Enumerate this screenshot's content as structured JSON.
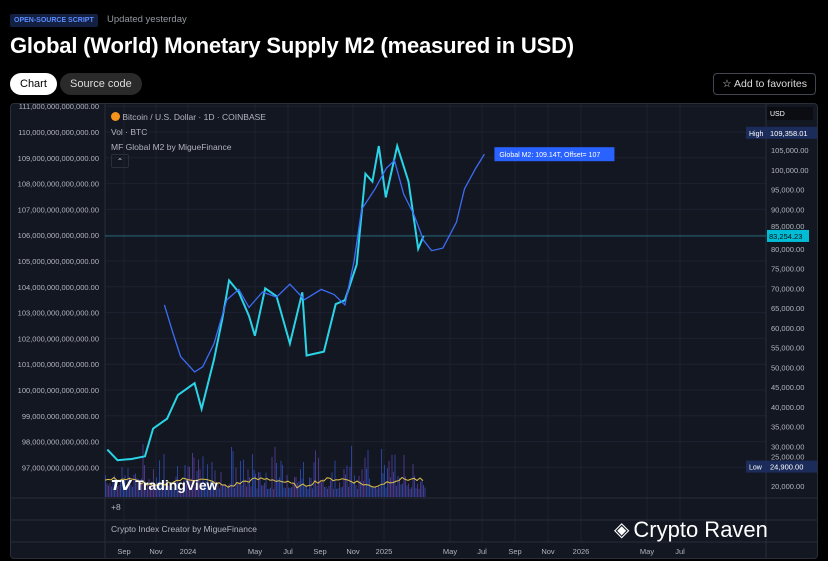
{
  "header": {
    "badge": "OPEN-SOURCE SCRIPT",
    "updated": "Updated yesterday",
    "title": "Global (World) Monetary Supply M2 (measured in USD)",
    "tabs": [
      {
        "label": "Chart",
        "active": true
      },
      {
        "label": "Source code",
        "active": false
      }
    ],
    "favorites_label": "Add to favorites"
  },
  "chart": {
    "symbol": "Bitcoin / U.S. Dollar · 1D · COINBASE",
    "volume_label": "Vol · BTC",
    "indicator_label": "MF Global M2 by MigueFinance",
    "pane2_label": "+8",
    "pane3_label": "Crypto Index Creator by MigueFinance",
    "currency": "USD",
    "high_label": "High",
    "high_value": "109,358.01",
    "low_label": "Low",
    "low_value": "24,900.00",
    "last_price": "83,254.23",
    "m2_tag": "Global M2: 109.14T, Offset= 107",
    "tv_logo": "TradingView",
    "watermark": "Crypto Raven"
  },
  "colors": {
    "btc": "#2ad4e6",
    "m2": "#3d6cf5",
    "volume_ma": "#e0c24a",
    "accent": "#2962ff"
  },
  "chart_data": {
    "type": "line",
    "left_axis": {
      "ticks": [
        "111,000,000,000,000.00",
        "110,000,000,000,000.00",
        "109,000,000,000,000.00",
        "108,000,000,000,000.00",
        "107,000,000,000,000.00",
        "106,000,000,000,000.00",
        "105,000,000,000,000.00",
        "104,000,000,000,000.00",
        "103,000,000,000,000.00",
        "102,000,000,000,000.00",
        "101,000,000,000,000.00",
        "100,000,000,000,000.00",
        "99,000,000,000,000.00",
        "98,000,000,000,000.00",
        "97,000,000,000,000.00"
      ]
    },
    "right_axis": {
      "ticks": [
        "105,000.00",
        "100,000.00",
        "95,000.00",
        "90,000.00",
        "85,000.00",
        "80,000.00",
        "75,000.00",
        "70,000.00",
        "65,000.00",
        "60,000.00",
        "55,000.00",
        "50,000.00",
        "45,000.00",
        "40,000.00",
        "35,000.00",
        "30,000.00",
        "25,000.00",
        "20,000.00"
      ]
    },
    "x_ticks": [
      "Sep",
      "Nov",
      "2024",
      "May",
      "Jul",
      "Sep",
      "Nov",
      "2025",
      "May",
      "Jul",
      "Sep",
      "Nov",
      "2026",
      "May",
      "Jul"
    ],
    "series": [
      {
        "name": "Bitcoin / U.S. Dollar",
        "axis": "right",
        "points": [
          [
            "2023-08-01",
            29200
          ],
          [
            "2023-08-20",
            26500
          ],
          [
            "2023-09-15",
            26800
          ],
          [
            "2023-10-10",
            27500
          ],
          [
            "2023-10-25",
            34500
          ],
          [
            "2023-11-20",
            37000
          ],
          [
            "2023-12-10",
            43000
          ],
          [
            "2024-01-10",
            46000
          ],
          [
            "2024-01-23",
            39500
          ],
          [
            "2024-02-15",
            52000
          ],
          [
            "2024-03-01",
            62000
          ],
          [
            "2024-03-14",
            72000
          ],
          [
            "2024-04-01",
            69000
          ],
          [
            "2024-04-20",
            63000
          ],
          [
            "2024-05-01",
            58000
          ],
          [
            "2024-05-20",
            70000
          ],
          [
            "2024-06-10",
            68000
          ],
          [
            "2024-07-05",
            56000
          ],
          [
            "2024-07-28",
            69000
          ],
          [
            "2024-08-05",
            53000
          ],
          [
            "2024-09-06",
            54000
          ],
          [
            "2024-09-28",
            66000
          ],
          [
            "2024-10-15",
            67000
          ],
          [
            "2024-11-06",
            76000
          ],
          [
            "2024-11-22",
            99000
          ],
          [
            "2024-12-05",
            97000
          ],
          [
            "2024-12-17",
            106000
          ],
          [
            "2024-12-30",
            93000
          ],
          [
            "2025-01-20",
            106000
          ],
          [
            "2025-02-10",
            97000
          ],
          [
            "2025-02-28",
            80000
          ],
          [
            "2025-03-10",
            83254
          ]
        ]
      },
      {
        "name": "Global M2",
        "axis": "left",
        "points": [
          [
            "2023-11-15",
            103.3
          ],
          [
            "2023-12-01",
            102.2
          ],
          [
            "2023-12-15",
            101.3
          ],
          [
            "2024-01-10",
            100.7
          ],
          [
            "2024-01-25",
            100.9
          ],
          [
            "2024-02-15",
            101.8
          ],
          [
            "2024-03-10",
            103.5
          ],
          [
            "2024-04-01",
            103.9
          ],
          [
            "2024-04-20",
            103.2
          ],
          [
            "2024-05-15",
            103.8
          ],
          [
            "2024-06-10",
            103.6
          ],
          [
            "2024-07-05",
            104.1
          ],
          [
            "2024-08-01",
            103.5
          ],
          [
            "2024-09-01",
            103.9
          ],
          [
            "2024-09-25",
            103.7
          ],
          [
            "2024-10-15",
            103.3
          ],
          [
            "2024-11-01",
            105.0
          ],
          [
            "2024-11-15",
            107.0
          ],
          [
            "2024-12-10",
            107.8
          ],
          [
            "2024-12-31",
            108.6
          ],
          [
            "2025-01-15",
            108.9
          ],
          [
            "2025-02-01",
            107.6
          ],
          [
            "2025-02-20",
            106.8
          ],
          [
            "2025-03-10",
            105.8
          ],
          [
            "2025-03-25",
            105.4
          ],
          [
            "2025-04-15",
            105.5
          ],
          [
            "2025-05-10",
            106.5
          ],
          [
            "2025-05-25",
            107.8
          ],
          [
            "2025-06-15",
            108.6
          ],
          [
            "2025-07-01",
            109.14
          ]
        ]
      }
    ]
  }
}
